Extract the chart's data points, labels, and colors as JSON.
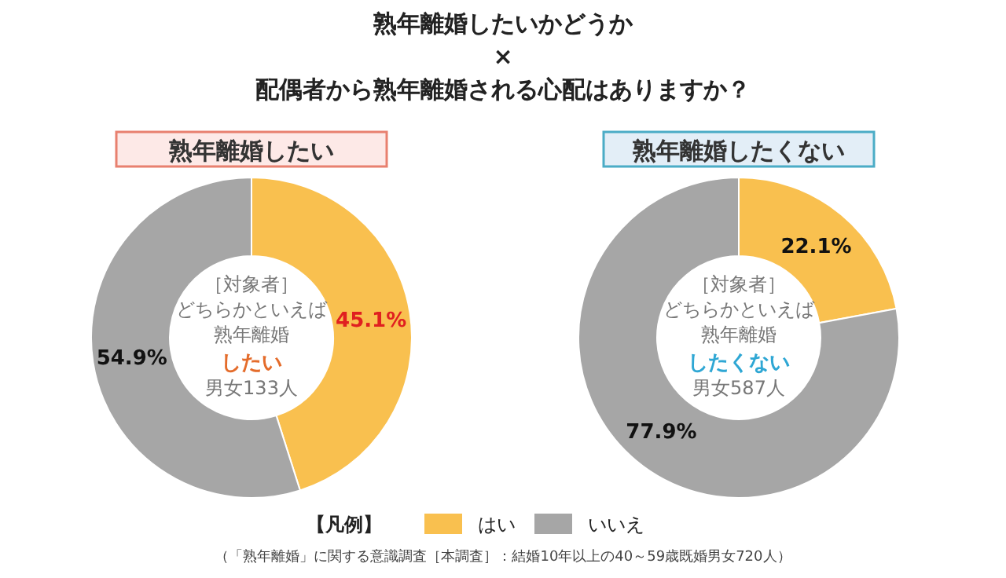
{
  "chart_data": [
    {
      "type": "donut",
      "title": "熟年離婚したいかどうか\n×\n配偶者から熟年離婚される心配はありますか？",
      "subtitle": "熟年離婚したい",
      "categories": [
        "はい",
        "いいえ"
      ],
      "values": [
        45.1,
        54.9
      ],
      "colors": [
        "#f9c04f",
        "#a6a6a6"
      ],
      "value_labels": [
        "45.1%",
        "54.9%"
      ],
      "legend": "bottom",
      "legend_title": "【凡例】",
      "annotations": [
        "［対象者］",
        "どちらかといえば",
        "熟年離婚",
        "したい",
        "男女133人",
        "（「熟年離婚」に関する意識調査［本調査］：結婚10年以上の40～59歳既婚男女720人）"
      ]
    },
    {
      "type": "donut",
      "subtitle": "熟年離婚したくない",
      "categories": [
        null,
        null
      ],
      "values": [
        22.1,
        77.9
      ],
      "colors": [
        "#f9c04f",
        "#a6a6a6"
      ],
      "value_labels": [
        "22.1%",
        "77.9%"
      ],
      "annotations": [
        "［対象者］",
        "どちらかといえば",
        "熟年離婚",
        "したくない",
        "男女587人"
      ]
    }
  ]
}
